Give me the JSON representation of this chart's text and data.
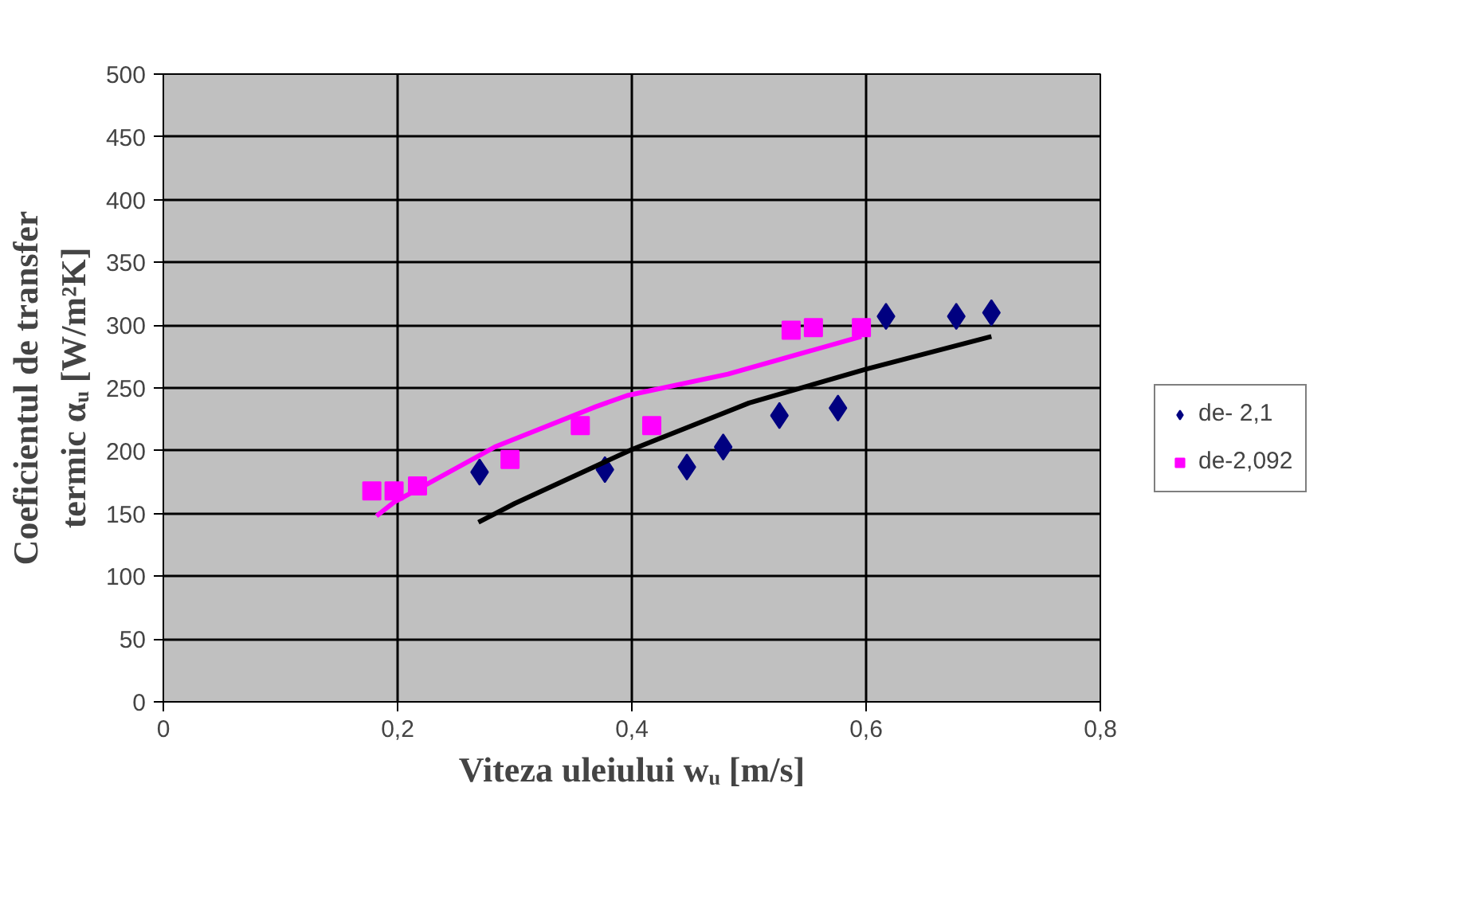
{
  "chart_data": {
    "type": "scatter",
    "xlabel": "Viteza uleiului wᵤ [m/s]",
    "ylabel": "Coeficientul de transfer\ntermic αᵤ [W/m²K]",
    "xlim": [
      0,
      0.8
    ],
    "ylim": [
      0,
      500
    ],
    "xticks": [
      0,
      {
        "value": 0.2,
        "label": "0,2"
      },
      {
        "value": 0.4,
        "label": "0,4"
      },
      {
        "value": 0.6,
        "label": "0,6"
      },
      {
        "value": 0.8,
        "label": "0,8"
      }
    ],
    "yticks": [
      0,
      50,
      100,
      150,
      200,
      250,
      300,
      350,
      400,
      450,
      500
    ],
    "grid": true,
    "legend": "right",
    "series": [
      {
        "name": "de- 2,1",
        "marker": "diamond",
        "color": "#000080",
        "x": [
          0.27,
          0.377,
          0.447,
          0.478,
          0.526,
          0.576,
          0.617,
          0.677,
          0.707
        ],
        "values": [
          183,
          185,
          187,
          203,
          228,
          234,
          307,
          307,
          310
        ]
      },
      {
        "name": "de-2,092",
        "marker": "square",
        "color": "#ff00ff",
        "x": [
          0.178,
          0.197,
          0.217,
          0.296,
          0.356,
          0.417,
          0.536,
          0.555,
          0.596
        ],
        "values": [
          168,
          168,
          172,
          193,
          220,
          220,
          296,
          298,
          298
        ]
      },
      {
        "type": "line",
        "marker": "none",
        "color": "#000000",
        "x": [
          0.269,
          0.3,
          0.4,
          0.5,
          0.6,
          0.707
        ],
        "values": [
          143,
          158,
          201,
          238,
          265,
          291
        ]
      },
      {
        "type": "line",
        "marker": "none",
        "color": "#ff00ff",
        "x": [
          0.182,
          0.197,
          0.283,
          0.369,
          0.396,
          0.482,
          0.596
        ],
        "values": [
          148,
          159,
          203,
          235,
          244,
          261,
          291
        ]
      }
    ]
  }
}
